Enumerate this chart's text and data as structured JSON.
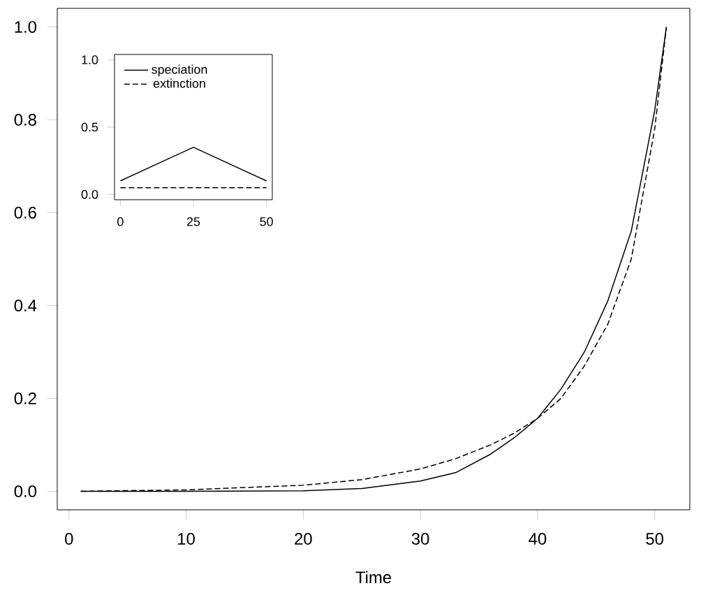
{
  "chart_data": [
    {
      "type": "line",
      "xlabel": "Time",
      "xlim": [
        -1,
        53
      ],
      "ylim": [
        -0.04,
        1.04
      ],
      "xticks": [
        0,
        10,
        20,
        30,
        40,
        50
      ],
      "yticks": [
        {
          "value": 0,
          "label": "0.0"
        },
        {
          "value": 0.2,
          "label": "0.2"
        },
        {
          "value": 0.4,
          "label": "0.4"
        },
        {
          "value": 0.6,
          "label": "0.6"
        },
        {
          "value": 0.8,
          "label": "0.8"
        },
        {
          "value": 1,
          "label": "1.0"
        }
      ],
      "x": [
        1,
        10,
        20,
        25,
        30,
        33,
        36,
        38,
        40,
        42,
        44,
        46,
        48,
        50,
        51
      ],
      "series": [
        {
          "color": "#000000",
          "line_style": "solid",
          "values": [
            0,
            0,
            0.001,
            0.006,
            0.022,
            0.04,
            0.08,
            0.115,
            0.157,
            0.22,
            0.3,
            0.41,
            0.56,
            0.82,
            1.0
          ]
        },
        {
          "color": "#000000",
          "line_style": "dashed",
          "values": [
            0,
            0.003,
            0.013,
            0.025,
            0.048,
            0.07,
            0.1,
            0.125,
            0.157,
            0.2,
            0.27,
            0.36,
            0.5,
            0.78,
            1.0
          ]
        }
      ]
    },
    {
      "type": "line",
      "xlim": [
        -2,
        52
      ],
      "ylim": [
        -0.04,
        1.04
      ],
      "xticks": [
        0,
        25,
        50
      ],
      "yticks": [
        {
          "value": 0,
          "label": "0.0"
        },
        {
          "value": 0.5,
          "label": "0.5"
        },
        {
          "value": 1,
          "label": "1.0"
        }
      ],
      "x": [
        0,
        25,
        50
      ],
      "legend": "top left",
      "series": [
        {
          "name": "speciation",
          "color": "#000000",
          "line_style": "solid",
          "values": [
            0.1,
            0.35,
            0.1
          ]
        },
        {
          "name": "extinction",
          "color": "#000000",
          "line_style": "dashed",
          "values": [
            0.05,
            0.05,
            0.05
          ]
        }
      ]
    }
  ]
}
